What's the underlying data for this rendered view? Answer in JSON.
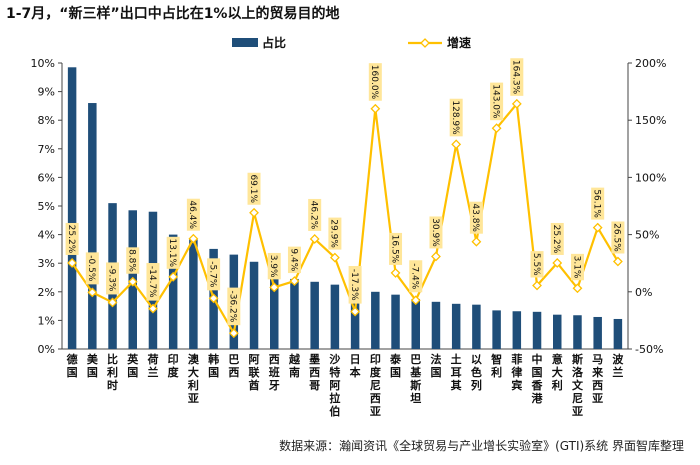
{
  "title": "1-7月，“新三样”出口中占比在1%以上的贸易目的地",
  "source": "数据来源：瀚闻资讯《全球贸易与产业增长实验室》(GTI)系统  界面智库整理",
  "colors": {
    "bar": "#1F4E79",
    "line": "#FFC000",
    "label_bg": "#FFE699",
    "marker_fill": "#ffffff"
  },
  "chart_data": {
    "type": "bar+line",
    "title": "1-7月，“新三样”出口中占比在1%以上的贸易目的地",
    "categories": [
      "德国",
      "美国",
      "比利时",
      "英国",
      "荷兰",
      "印度",
      "澳大利亚",
      "韩国",
      "巴西",
      "阿联酋",
      "西班牙",
      "越南",
      "墨西哥",
      "沙特阿拉伯",
      "日本",
      "印度尼西亚",
      "泰国",
      "巴基斯坦",
      "法国",
      "土耳其",
      "以色列",
      "智利",
      "菲律宾",
      "中国香港",
      "意大利",
      "斯洛文尼亚",
      "马来西亚",
      "波兰"
    ],
    "series": [
      {
        "name": "占比",
        "type": "bar",
        "axis": "left",
        "values": [
          9.85,
          8.6,
          5.1,
          4.85,
          4.8,
          4.0,
          3.85,
          3.5,
          3.3,
          3.05,
          2.55,
          2.45,
          2.35,
          2.25,
          2.15,
          2.0,
          1.9,
          1.75,
          1.65,
          1.58,
          1.55,
          1.35,
          1.32,
          1.3,
          1.2,
          1.18,
          1.12,
          1.05
        ]
      },
      {
        "name": "增速",
        "type": "line",
        "axis": "right",
        "values": [
          25.2,
          -0.5,
          -9.3,
          8.8,
          -14.7,
          13.1,
          46.4,
          -5.7,
          -36.2,
          69.1,
          3.9,
          9.4,
          46.2,
          29.9,
          -17.3,
          160.0,
          16.5,
          -7.4,
          30.9,
          128.9,
          43.8,
          143.0,
          164.3,
          5.5,
          25.2,
          3.1,
          56.1,
          26.5
        ],
        "labels": [
          "25.2%",
          "-0.5%",
          "-9.3%",
          "8.8%",
          "-14.7%",
          "13.1%",
          "46.4%",
          "-5.7%",
          "-36.2%",
          "69.1%",
          "3.9%",
          "9.4%",
          "46.2%",
          "29.9%",
          "-17.3%",
          "160.0%",
          "16.5%",
          "-7.4%",
          "30.9%",
          "128.9%",
          "43.8%",
          "143.0%",
          "164.3%",
          "5.5%",
          "25.2%",
          "3.1%",
          "56.1%",
          "26.5%"
        ]
      }
    ],
    "y_left": {
      "ticks": [
        "0%",
        "1%",
        "2%",
        "3%",
        "4%",
        "5%",
        "6%",
        "7%",
        "8%",
        "9%",
        "10%"
      ],
      "min": 0,
      "max": 10
    },
    "y_right": {
      "ticks": [
        "-50%",
        "0%",
        "50%",
        "100%",
        "150%",
        "200%"
      ],
      "min": -50,
      "max": 200
    },
    "legend": "top-center",
    "grid": false
  }
}
